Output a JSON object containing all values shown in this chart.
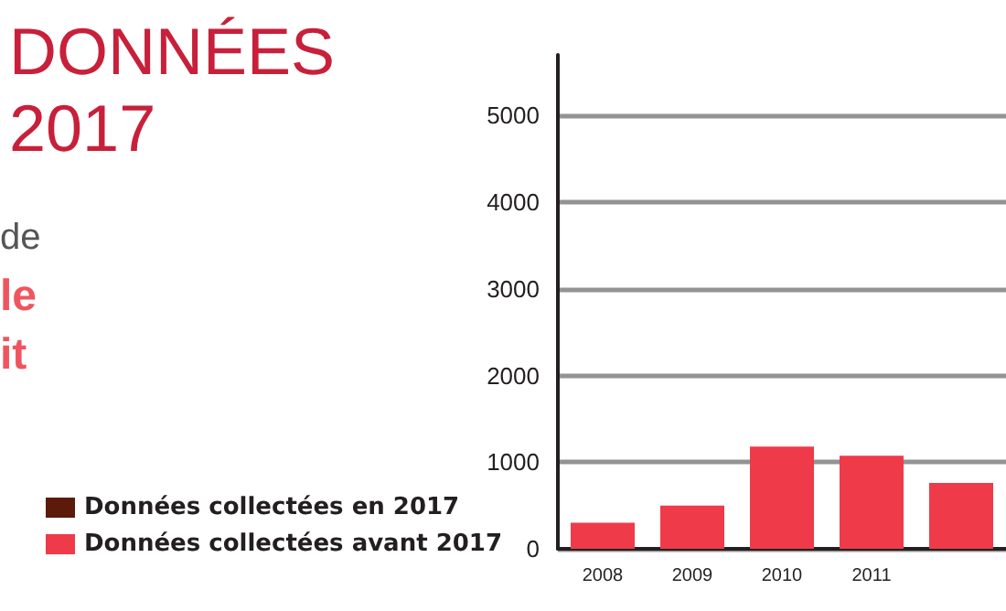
{
  "chart_data": {
    "type": "bar",
    "title": "DONNÉES\n2017",
    "annotations": [
      "de",
      "le",
      "it"
    ],
    "categories": [
      "2008",
      "2009",
      "2010",
      "2011",
      null
    ],
    "series": [
      {
        "name": "Données collectées en 2017",
        "color": "#5c1a0a",
        "values": [
          null,
          null,
          null,
          null,
          null
        ]
      },
      {
        "name": "Données collectées avant 2017",
        "color": "#ef3a4a",
        "values": [
          300,
          500,
          1180,
          1075,
          760
        ]
      }
    ],
    "stacked": true,
    "ylim": [
      0,
      5700
    ],
    "yticks": [
      0,
      1000,
      2000,
      3000,
      4000,
      5000
    ],
    "grid": "y",
    "legend": "bottom left"
  }
}
